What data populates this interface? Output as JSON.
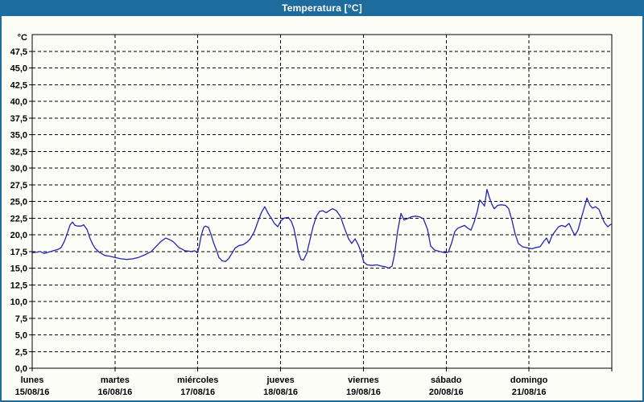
{
  "window": {
    "title": "Temperatura [°C]"
  },
  "colors": {
    "titlebar_bg": "#1e6b9e",
    "frame_border": "#1e6b9e",
    "title_text": "#ffffff",
    "background": "#fdfdf8",
    "line": "#2323b0",
    "grid": "#000000",
    "axis": "#000000",
    "label_text": "#000000"
  },
  "chart_data": {
    "type": "line",
    "title": "Temperatura [°C]",
    "y_unit_label": "°C",
    "ylim": [
      0,
      50
    ],
    "y_tick_step": 2.5,
    "decimal_separator": ",",
    "y_tick_labels_top_down": [
      "47,5",
      "45,0",
      "42,5",
      "40,0",
      "37,5",
      "35,0",
      "32,5",
      "30,0",
      "27,5",
      "25,0",
      "22,5",
      "20,0",
      "17,5",
      "15,0",
      "12,5",
      "10,0",
      "7,5",
      "5,0",
      "2,5",
      "0,0"
    ],
    "grid": "dashed",
    "legend": "none",
    "x_hours_total": 168,
    "x_days": [
      {
        "name": "lunes",
        "date": "15/08/16"
      },
      {
        "name": "martes",
        "date": "16/08/16"
      },
      {
        "name": "miércoles",
        "date": "17/08/16"
      },
      {
        "name": "jueves",
        "date": "18/08/16"
      },
      {
        "name": "viernes",
        "date": "19/08/16"
      },
      {
        "name": "sábado",
        "date": "20/08/16"
      },
      {
        "name": "domingo",
        "date": "21/08/16"
      }
    ],
    "series": [
      {
        "name": "Temperatura",
        "x_unit": "hours_since_monday_00h",
        "y_unit": "°C",
        "points": [
          [
            0,
            17.3
          ],
          [
            1.4,
            17.4
          ],
          [
            2.3,
            17.5
          ],
          [
            3.5,
            17.2
          ],
          [
            4.7,
            17.4
          ],
          [
            6.1,
            17.6
          ],
          [
            7.5,
            17.8
          ],
          [
            8.4,
            18.1
          ],
          [
            9.3,
            19.0
          ],
          [
            10.3,
            20.4
          ],
          [
            11.0,
            21.5
          ],
          [
            11.7,
            21.9
          ],
          [
            12.4,
            21.4
          ],
          [
            13.3,
            21.3
          ],
          [
            14.2,
            21.3
          ],
          [
            14.9,
            21.5
          ],
          [
            15.9,
            20.8
          ],
          [
            16.8,
            19.4
          ],
          [
            17.5,
            18.6
          ],
          [
            18.2,
            18.0
          ],
          [
            19.4,
            17.4
          ],
          [
            21.0,
            16.9
          ],
          [
            22.4,
            16.8
          ],
          [
            24.0,
            16.6
          ],
          [
            25.7,
            16.4
          ],
          [
            27.5,
            16.3
          ],
          [
            29.2,
            16.4
          ],
          [
            30.8,
            16.6
          ],
          [
            32.7,
            17.0
          ],
          [
            34.5,
            17.5
          ],
          [
            36.2,
            18.4
          ],
          [
            37.3,
            19.0
          ],
          [
            38.7,
            19.5
          ],
          [
            39.7,
            19.3
          ],
          [
            40.8,
            19.0
          ],
          [
            42.5,
            18.1
          ],
          [
            44.3,
            17.6
          ],
          [
            46.2,
            17.5
          ],
          [
            47.1,
            17.6
          ],
          [
            47.8,
            17.3
          ],
          [
            48.3,
            18.0
          ],
          [
            49.0,
            19.9
          ],
          [
            49.7,
            21.1
          ],
          [
            50.2,
            21.3
          ],
          [
            51.1,
            21.1
          ],
          [
            51.8,
            20.1
          ],
          [
            52.5,
            18.9
          ],
          [
            53.4,
            17.7
          ],
          [
            54.1,
            16.6
          ],
          [
            55.1,
            16.1
          ],
          [
            56.0,
            16.0
          ],
          [
            56.9,
            16.4
          ],
          [
            57.9,
            17.2
          ],
          [
            58.8,
            18.0
          ],
          [
            60.0,
            18.4
          ],
          [
            61.1,
            18.5
          ],
          [
            62.3,
            18.9
          ],
          [
            63.2,
            19.4
          ],
          [
            64.4,
            20.5
          ],
          [
            65.6,
            22.2
          ],
          [
            66.5,
            23.4
          ],
          [
            67.4,
            24.2
          ],
          [
            68.4,
            23.2
          ],
          [
            69.3,
            22.5
          ],
          [
            70.2,
            21.7
          ],
          [
            71.2,
            21.2
          ],
          [
            72.1,
            22.1
          ],
          [
            73.0,
            22.5
          ],
          [
            74.2,
            22.6
          ],
          [
            75.1,
            22.0
          ],
          [
            75.8,
            21.0
          ],
          [
            76.5,
            19.3
          ],
          [
            77.2,
            17.3
          ],
          [
            77.9,
            16.3
          ],
          [
            78.6,
            16.2
          ],
          [
            79.6,
            17.2
          ],
          [
            80.5,
            19.2
          ],
          [
            81.4,
            21.2
          ],
          [
            82.4,
            22.8
          ],
          [
            83.3,
            23.5
          ],
          [
            84.2,
            23.6
          ],
          [
            85.2,
            23.3
          ],
          [
            86.1,
            23.6
          ],
          [
            87.0,
            23.9
          ],
          [
            88.2,
            23.6
          ],
          [
            89.4,
            22.7
          ],
          [
            90.5,
            21.0
          ],
          [
            91.7,
            19.4
          ],
          [
            92.6,
            18.7
          ],
          [
            93.6,
            19.4
          ],
          [
            94.5,
            18.5
          ],
          [
            95.4,
            17.3
          ],
          [
            96.1,
            15.9
          ],
          [
            97.1,
            15.5
          ],
          [
            98.5,
            15.4
          ],
          [
            99.9,
            15.5
          ],
          [
            101.3,
            15.3
          ],
          [
            102.4,
            15.2
          ],
          [
            103.4,
            15.0
          ],
          [
            104.3,
            15.3
          ],
          [
            105.0,
            17.0
          ],
          [
            105.9,
            20.5
          ],
          [
            106.9,
            23.2
          ],
          [
            107.8,
            22.2
          ],
          [
            108.7,
            22.4
          ],
          [
            109.9,
            22.7
          ],
          [
            111.1,
            22.8
          ],
          [
            112.2,
            22.7
          ],
          [
            113.4,
            22.4
          ],
          [
            114.6,
            20.8
          ],
          [
            115.5,
            18.3
          ],
          [
            116.7,
            17.7
          ],
          [
            118.1,
            17.5
          ],
          [
            119.7,
            17.3
          ],
          [
            120.6,
            17.4
          ],
          [
            121.6,
            18.8
          ],
          [
            122.5,
            20.5
          ],
          [
            123.4,
            21.0
          ],
          [
            124.4,
            21.2
          ],
          [
            125.3,
            21.4
          ],
          [
            126.2,
            21.0
          ],
          [
            127.2,
            20.7
          ],
          [
            128.1,
            21.9
          ],
          [
            129.0,
            23.5
          ],
          [
            129.7,
            25.2
          ],
          [
            130.4,
            24.8
          ],
          [
            131.1,
            24.3
          ],
          [
            131.8,
            26.8
          ],
          [
            132.5,
            25.6
          ],
          [
            133.2,
            24.6
          ],
          [
            133.9,
            23.9
          ],
          [
            134.9,
            24.4
          ],
          [
            136.0,
            24.5
          ],
          [
            137.2,
            24.4
          ],
          [
            138.1,
            23.9
          ],
          [
            139.1,
            22.1
          ],
          [
            140.0,
            20.1
          ],
          [
            140.9,
            18.7
          ],
          [
            142.1,
            18.2
          ],
          [
            143.0,
            18.1
          ],
          [
            144.0,
            18.0
          ],
          [
            144.9,
            17.9
          ],
          [
            146.1,
            18.1
          ],
          [
            147.2,
            18.2
          ],
          [
            148.4,
            19.1
          ],
          [
            149.1,
            19.5
          ],
          [
            149.8,
            18.7
          ],
          [
            150.7,
            19.9
          ],
          [
            151.7,
            20.6
          ],
          [
            152.6,
            21.2
          ],
          [
            153.5,
            21.4
          ],
          [
            154.5,
            21.2
          ],
          [
            155.6,
            21.7
          ],
          [
            156.6,
            20.6
          ],
          [
            157.3,
            19.9
          ],
          [
            158.2,
            20.7
          ],
          [
            159.1,
            22.4
          ],
          [
            160.1,
            24.2
          ],
          [
            160.8,
            25.5
          ],
          [
            161.7,
            24.4
          ],
          [
            162.4,
            24.0
          ],
          [
            163.3,
            24.2
          ],
          [
            164.3,
            23.8
          ],
          [
            165.2,
            22.6
          ],
          [
            165.9,
            21.8
          ],
          [
            166.8,
            21.2
          ],
          [
            167.5,
            21.5
          ],
          [
            168.0,
            21.6
          ]
        ]
      }
    ]
  }
}
